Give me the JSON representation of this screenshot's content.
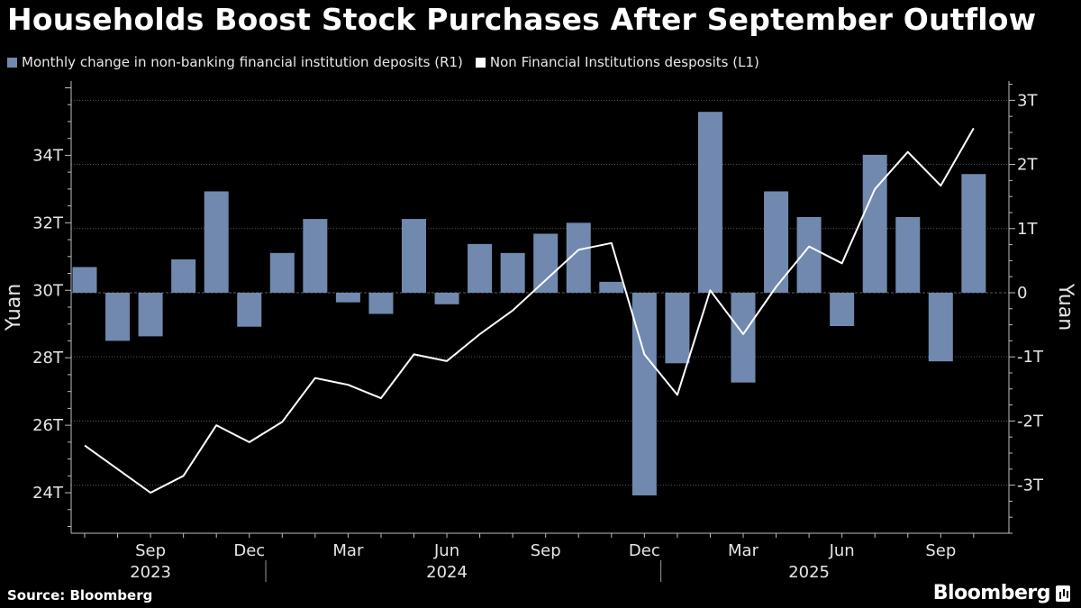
{
  "title": "Households Boost Stock Purchases After September Outflow",
  "legend": [
    {
      "label": "Monthly change in non-banking financial institution deposits (R1)",
      "color": "#7189ae"
    },
    {
      "label": "Non Financial Institutions desposits (L1)",
      "color": "#ffffff"
    }
  ],
  "source": "Source: Bloomberg",
  "brand": "Bloomberg",
  "chart_data": {
    "type": "bar+line",
    "months": [
      "2023-07",
      "2023-08",
      "2023-09",
      "2023-10",
      "2023-11",
      "2023-12",
      "2024-01",
      "2024-02",
      "2024-03",
      "2024-04",
      "2024-05",
      "2024-06",
      "2024-07",
      "2024-08",
      "2024-09",
      "2024-10",
      "2024-11",
      "2024-12",
      "2025-01",
      "2025-02",
      "2025-03",
      "2025-04",
      "2025-05",
      "2025-06",
      "2025-07",
      "2025-08",
      "2025-09",
      "2025-10"
    ],
    "x_tick_labels": [
      {
        "month": "2023-09",
        "label": "Sep"
      },
      {
        "month": "2023-12",
        "label": "Dec"
      },
      {
        "month": "2024-03",
        "label": "Mar"
      },
      {
        "month": "2024-06",
        "label": "Jun"
      },
      {
        "month": "2024-09",
        "label": "Sep"
      },
      {
        "month": "2024-12",
        "label": "Dec"
      },
      {
        "month": "2025-03",
        "label": "Mar"
      },
      {
        "month": "2025-06",
        "label": "Jun"
      },
      {
        "month": "2025-09",
        "label": "Sep"
      }
    ],
    "year_labels": [
      {
        "month": "2023-09",
        "label": "2023"
      },
      {
        "month": "2024-06",
        "label": "2024"
      },
      {
        "month": "2025-05",
        "label": "2025"
      }
    ],
    "series": [
      {
        "name": "Monthly change in non-banking financial institution deposits (R1)",
        "type": "bar",
        "axis": "right",
        "color": "#7189ae",
        "values": [
          0.4,
          -0.75,
          -0.68,
          0.52,
          1.58,
          -0.53,
          0.62,
          1.15,
          -0.15,
          -0.33,
          1.15,
          -0.18,
          0.76,
          0.62,
          0.92,
          1.09,
          0.17,
          -3.16,
          -1.1,
          2.82,
          -1.4,
          1.58,
          1.18,
          -0.52,
          2.15,
          1.18,
          -1.07,
          1.85
        ]
      },
      {
        "name": "Non Financial Institutions desposits (L1)",
        "type": "line",
        "axis": "left",
        "color": "#ffffff",
        "values": [
          25.4,
          24.7,
          24.0,
          24.5,
          26.0,
          25.5,
          26.1,
          27.4,
          27.2,
          26.8,
          28.1,
          27.9,
          28.7,
          29.4,
          30.3,
          31.2,
          31.4,
          28.1,
          26.9,
          30.0,
          28.7,
          30.1,
          31.3,
          30.8,
          33.0,
          34.1,
          33.1,
          34.8
        ]
      }
    ],
    "left_axis": {
      "label": "Yuan",
      "ylim": [
        22.8,
        36.2
      ],
      "ticks": [
        24,
        26,
        28,
        30,
        32,
        34
      ],
      "tick_labels": [
        "24T",
        "26T",
        "28T",
        "30T",
        "32T",
        "34T"
      ]
    },
    "right_axis": {
      "label": "Yuan",
      "ylim": [
        -3.75,
        3.3
      ],
      "ticks": [
        -3,
        -2,
        -1,
        0,
        1,
        2,
        3
      ],
      "tick_labels": [
        "-3T",
        "-2T",
        "-1T",
        "0",
        "1T",
        "2T",
        "3T"
      ]
    },
    "grid": true,
    "legend_position": "top-left"
  }
}
